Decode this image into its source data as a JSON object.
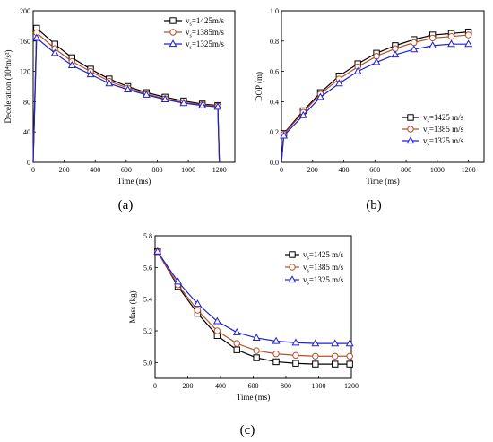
{
  "chart_data": [
    {
      "type": "line",
      "caption": "(a)",
      "xlabel": "Time (ms)",
      "ylabel": "Deceleration (10⁴m/s²)",
      "xlim": [
        0,
        1300
      ],
      "ylim": [
        0,
        200
      ],
      "xticks": [
        0,
        200,
        400,
        600,
        800,
        1000,
        1200
      ],
      "yticks": [
        0,
        40,
        80,
        120,
        160,
        200
      ],
      "legend": "top-right",
      "series": [
        {
          "name": "vs=1425m/s",
          "label_main": "v",
          "label_sub": "s",
          "label_rest": "=1425m/s",
          "color": "#000000",
          "marker": "square",
          "x": [
            0,
            22,
            140,
            250,
            370,
            490,
            610,
            730,
            850,
            970,
            1090,
            1190,
            1200
          ],
          "y": [
            0,
            177,
            156,
            138,
            123,
            110,
            100,
            92,
            86,
            81,
            77,
            75,
            0
          ]
        },
        {
          "name": "vs=1385m/s",
          "label_main": "v",
          "label_sub": "s",
          "label_rest": "=1385m/s",
          "color": "#b5502b",
          "marker": "circle",
          "x": [
            0,
            22,
            140,
            250,
            370,
            490,
            610,
            730,
            850,
            970,
            1090,
            1190,
            1200
          ],
          "y": [
            0,
            171,
            150,
            133,
            120,
            107,
            98,
            90,
            84,
            79,
            76,
            74,
            0
          ]
        },
        {
          "name": "vs=1325m/s",
          "label_main": "v",
          "label_sub": "s",
          "label_rest": "=1325m/s",
          "color": "#2020d0",
          "marker": "triangle",
          "x": [
            0,
            22,
            140,
            250,
            370,
            490,
            610,
            730,
            850,
            970,
            1090,
            1190,
            1200
          ],
          "y": [
            0,
            164,
            144,
            128,
            116,
            104,
            96,
            89,
            83,
            78,
            75,
            73,
            0
          ]
        }
      ]
    },
    {
      "type": "line",
      "caption": "(b)",
      "xlabel": "Time (ms)",
      "ylabel": "DOP (m)",
      "xlim": [
        0,
        1300
      ],
      "ylim": [
        0,
        1.0
      ],
      "xticks": [
        0,
        200,
        400,
        600,
        800,
        1000,
        1200
      ],
      "yticks": [
        0.0,
        0.2,
        0.4,
        0.6,
        0.8,
        1.0
      ],
      "legend": "bottom-right",
      "series": [
        {
          "name": "vs=1425 m/s",
          "label_main": "v",
          "label_sub": "s",
          "label_rest": "=1425 m/s",
          "color": "#000000",
          "marker": "square",
          "x": [
            0,
            15,
            140,
            250,
            370,
            490,
            610,
            730,
            850,
            970,
            1090,
            1200
          ],
          "y": [
            0,
            0.19,
            0.34,
            0.46,
            0.57,
            0.65,
            0.72,
            0.77,
            0.81,
            0.84,
            0.85,
            0.86
          ]
        },
        {
          "name": "vs=1385 m/s",
          "label_main": "v",
          "label_sub": "s",
          "label_rest": "=1385 m/s",
          "color": "#b5502b",
          "marker": "circle",
          "x": [
            0,
            15,
            140,
            250,
            370,
            490,
            610,
            730,
            850,
            970,
            1090,
            1200
          ],
          "y": [
            0,
            0.185,
            0.33,
            0.45,
            0.55,
            0.63,
            0.7,
            0.75,
            0.79,
            0.82,
            0.83,
            0.84
          ]
        },
        {
          "name": "vs=1325 m/s",
          "label_main": "v",
          "label_sub": "s",
          "label_rest": "=1325 m/s",
          "color": "#2020d0",
          "marker": "triangle",
          "x": [
            0,
            15,
            140,
            250,
            370,
            490,
            610,
            730,
            850,
            970,
            1090,
            1200
          ],
          "y": [
            0,
            0.175,
            0.31,
            0.43,
            0.52,
            0.6,
            0.66,
            0.71,
            0.745,
            0.77,
            0.78,
            0.78
          ]
        }
      ]
    },
    {
      "type": "line",
      "caption": "(c)",
      "xlabel": "Time (ms)",
      "ylabel": "Mass (kg)",
      "xlim": [
        0,
        1200
      ],
      "ylim": [
        4.9,
        5.8
      ],
      "xticks": [
        0,
        200,
        400,
        600,
        800,
        1000,
        1200
      ],
      "yticks": [
        5.0,
        5.2,
        5.4,
        5.6,
        5.8
      ],
      "legend": "top-right",
      "series": [
        {
          "name": "vs=1425 m/s",
          "label_main": "v",
          "label_sub": "s",
          "label_rest": "=1425 m/s",
          "color": "#000000",
          "marker": "square",
          "x": [
            15,
            140,
            260,
            380,
            500,
            620,
            740,
            860,
            980,
            1100,
            1190
          ],
          "y": [
            5.7,
            5.48,
            5.31,
            5.17,
            5.08,
            5.03,
            5.005,
            4.995,
            4.99,
            4.99,
            4.99
          ]
        },
        {
          "name": "vs=1385 m/s",
          "label_main": "v",
          "label_sub": "s",
          "label_rest": "=1385 m/s",
          "color": "#b5502b",
          "marker": "circle",
          "x": [
            15,
            140,
            260,
            380,
            500,
            620,
            740,
            860,
            980,
            1100,
            1190
          ],
          "y": [
            5.7,
            5.49,
            5.33,
            5.2,
            5.12,
            5.075,
            5.055,
            5.045,
            5.04,
            5.04,
            5.04
          ]
        },
        {
          "name": "vs=1325 m/s",
          "label_main": "v",
          "label_sub": "s",
          "label_rest": "=1325 m/s",
          "color": "#2020d0",
          "marker": "triangle",
          "x": [
            15,
            140,
            260,
            380,
            500,
            620,
            740,
            860,
            980,
            1100,
            1190
          ],
          "y": [
            5.7,
            5.51,
            5.37,
            5.26,
            5.19,
            5.155,
            5.135,
            5.125,
            5.12,
            5.12,
            5.12
          ]
        }
      ]
    }
  ]
}
